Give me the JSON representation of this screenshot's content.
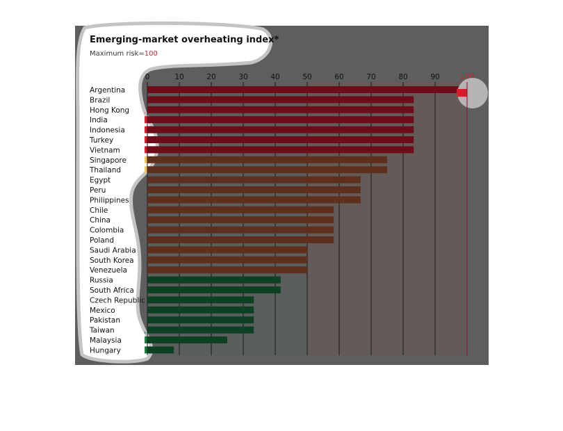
{
  "chart_data": {
    "type": "bar",
    "orientation": "horizontal",
    "title": "Emerging-market overheating index*",
    "subtitle_prefix": "Maximum risk=",
    "subtitle_value": "100",
    "xlim": [
      0,
      100
    ],
    "ticks": [
      "0",
      "10",
      "20",
      "30",
      "40",
      "50",
      "60",
      "70",
      "80",
      "90",
      "100"
    ],
    "grid": true,
    "categories": [
      "Argentina",
      "Brazil",
      "Hong Kong",
      "India",
      "Indonesia",
      "Turkey",
      "Vietnam",
      "Singapore",
      "Thailand",
      "Egypt",
      "Peru",
      "Philippines",
      "Chile",
      "China",
      "Colombia",
      "Poland",
      "Saudi Arabia",
      "South Korea",
      "Venezuela",
      "Russia",
      "South Africa",
      "Czech Republic",
      "Mexico",
      "Pakistan",
      "Taiwan",
      "Malaysia",
      "Hungary"
    ],
    "values": [
      100,
      83.3,
      83.3,
      83.3,
      83.3,
      83.3,
      83.3,
      75,
      75,
      66.7,
      66.7,
      66.7,
      58.3,
      58.3,
      58.3,
      58.3,
      50,
      50,
      50,
      41.7,
      41.7,
      33.3,
      33.3,
      33.3,
      33.3,
      25,
      8.3
    ],
    "colors": {
      "high": "#6e0d1a",
      "medium": "#5e2f1c",
      "low": "#0e4024",
      "panel": "#5e5e5e",
      "band_high": "#d81c2c",
      "band_medium": "#f2c25c",
      "band_low": "#1c7a3e",
      "value_highlight": "#d81c2c"
    }
  }
}
